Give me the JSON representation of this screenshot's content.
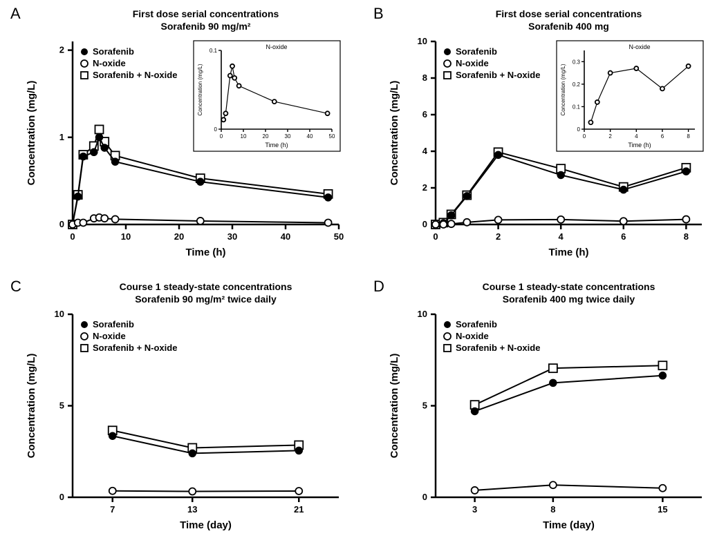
{
  "legend_common": {
    "items": [
      {
        "label": "Sorafenib",
        "marker": "filled-circle"
      },
      {
        "label": "N-oxide",
        "marker": "open-circle"
      },
      {
        "label": "Sorafenib + N-oxide",
        "marker": "open-square"
      }
    ],
    "fontsize": 13,
    "font_weight": "bold"
  },
  "style": {
    "axis_color": "#000000",
    "axis_width": 2.5,
    "line_color": "#000000",
    "line_width": 2,
    "marker_size": 6,
    "title_fontsize": 14,
    "title_font_weight": "bold",
    "label_fontsize": 15,
    "label_font_weight": "bold",
    "tick_fontsize": 13,
    "tick_font_weight": "bold",
    "inset_fontsize": 8,
    "background_color": "#ffffff"
  },
  "panelA": {
    "label": "A",
    "title_line1": "First dose serial concentrations",
    "title_line2": "Sorafenib 90 mg/m²",
    "xlabel": "Time (h)",
    "ylabel": "Concentration (mg/L)",
    "xlim": [
      0,
      50
    ],
    "xticks": [
      0,
      10,
      20,
      30,
      40,
      50
    ],
    "ylim": [
      0,
      2.1
    ],
    "yticks": [
      0,
      1,
      2
    ],
    "series": {
      "sorafenib": {
        "x": [
          0,
          1,
          2,
          4,
          5,
          6,
          8,
          24,
          48
        ],
        "y": [
          0.0,
          0.32,
          0.78,
          0.83,
          1.0,
          0.88,
          0.72,
          0.49,
          0.31
        ]
      },
      "noxide": {
        "x": [
          0,
          1,
          2,
          4,
          5,
          6,
          8,
          24,
          48
        ],
        "y": [
          0.0,
          0.02,
          0.02,
          0.07,
          0.08,
          0.07,
          0.06,
          0.04,
          0.02
        ]
      },
      "sorafenib_noxide": {
        "x": [
          0,
          1,
          2,
          4,
          5,
          6,
          8,
          24,
          48
        ],
        "y": [
          0.0,
          0.34,
          0.8,
          0.9,
          1.09,
          0.95,
          0.79,
          0.53,
          0.35
        ]
      }
    },
    "inset": {
      "title": "N-oxide",
      "xlabel": "Time (h)",
      "ylabel": "Concentration (mg/L)",
      "xlim": [
        0,
        50
      ],
      "xticks": [
        0,
        10,
        20,
        30,
        40,
        50
      ],
      "ylim": [
        0,
        0.1
      ],
      "yticks": [
        0,
        0.1
      ],
      "series": {
        "x": [
          1,
          2,
          4,
          5,
          6,
          8,
          24,
          48
        ],
        "y": [
          0.012,
          0.02,
          0.068,
          0.08,
          0.065,
          0.055,
          0.035,
          0.02
        ]
      }
    }
  },
  "panelB": {
    "label": "B",
    "title_line1": "First dose serial concentrations",
    "title_line2": "Sorafenib 400 mg",
    "xlabel": "Time (h)",
    "ylabel": "Concentration (mg/L)",
    "xlim": [
      0,
      8.5
    ],
    "xticks": [
      0,
      2,
      4,
      6,
      8
    ],
    "ylim": [
      0,
      10
    ],
    "yticks": [
      0,
      2,
      4,
      6,
      8,
      10
    ],
    "series": {
      "sorafenib": {
        "x": [
          0,
          0.25,
          0.5,
          1,
          2,
          4,
          6,
          8
        ],
        "y": [
          0.0,
          0.07,
          0.5,
          1.55,
          3.8,
          2.7,
          1.9,
          2.9
        ]
      },
      "noxide": {
        "x": [
          0,
          0.25,
          0.5,
          1,
          2,
          4,
          6,
          8
        ],
        "y": [
          0.0,
          0.0,
          0.03,
          0.12,
          0.25,
          0.27,
          0.18,
          0.28
        ]
      },
      "sorafenib_noxide": {
        "x": [
          0,
          0.25,
          0.5,
          1,
          2,
          4,
          6,
          8
        ],
        "y": [
          0.0,
          0.1,
          0.55,
          1.6,
          3.95,
          3.05,
          2.05,
          3.1
        ]
      }
    },
    "inset": {
      "title": "N-oxide",
      "xlabel": "Time (h)",
      "ylabel": "Concentration (mg/L)",
      "xlim": [
        0,
        8.5
      ],
      "xticks": [
        0,
        2,
        4,
        6,
        8
      ],
      "ylim": [
        0,
        0.35
      ],
      "yticks": [
        0,
        0.1,
        0.2,
        0.3
      ],
      "series": {
        "x": [
          0.5,
          1,
          2,
          4,
          6,
          8
        ],
        "y": [
          0.03,
          0.12,
          0.25,
          0.27,
          0.18,
          0.28
        ]
      }
    }
  },
  "panelC": {
    "label": "C",
    "title_line1": "Course 1 steady-state concentrations",
    "title_line2": "Sorafenib 90 mg/m² twice daily",
    "xlabel": "Time (day)",
    "ylabel": "Concentration (mg/L)",
    "xlim": [
      4,
      24
    ],
    "xticks": [
      7,
      13,
      21
    ],
    "ylim": [
      0,
      10
    ],
    "yticks": [
      0,
      5,
      10
    ],
    "series": {
      "sorafenib": {
        "x": [
          7,
          13,
          21
        ],
        "y": [
          3.35,
          2.4,
          2.55
        ]
      },
      "noxide": {
        "x": [
          7,
          13,
          21
        ],
        "y": [
          0.35,
          0.32,
          0.34
        ]
      },
      "sorafenib_noxide": {
        "x": [
          7,
          13,
          21
        ],
        "y": [
          3.65,
          2.7,
          2.85
        ]
      }
    }
  },
  "panelD": {
    "label": "D",
    "title_line1": "Course 1 steady-state concentrations",
    "title_line2": "Sorafenib 400 mg twice daily",
    "xlabel": "Time (day)",
    "ylabel": "Concentration (mg/L)",
    "xlim": [
      0.5,
      17.5
    ],
    "xticks": [
      3,
      8,
      15
    ],
    "ylim": [
      0,
      10
    ],
    "yticks": [
      0,
      5,
      10
    ],
    "series": {
      "sorafenib": {
        "x": [
          3,
          8,
          15
        ],
        "y": [
          4.7,
          6.25,
          6.65
        ]
      },
      "noxide": {
        "x": [
          3,
          8,
          15
        ],
        "y": [
          0.38,
          0.67,
          0.5
        ]
      },
      "sorafenib_noxide": {
        "x": [
          3,
          8,
          15
        ],
        "y": [
          5.05,
          7.05,
          7.2
        ]
      }
    }
  }
}
